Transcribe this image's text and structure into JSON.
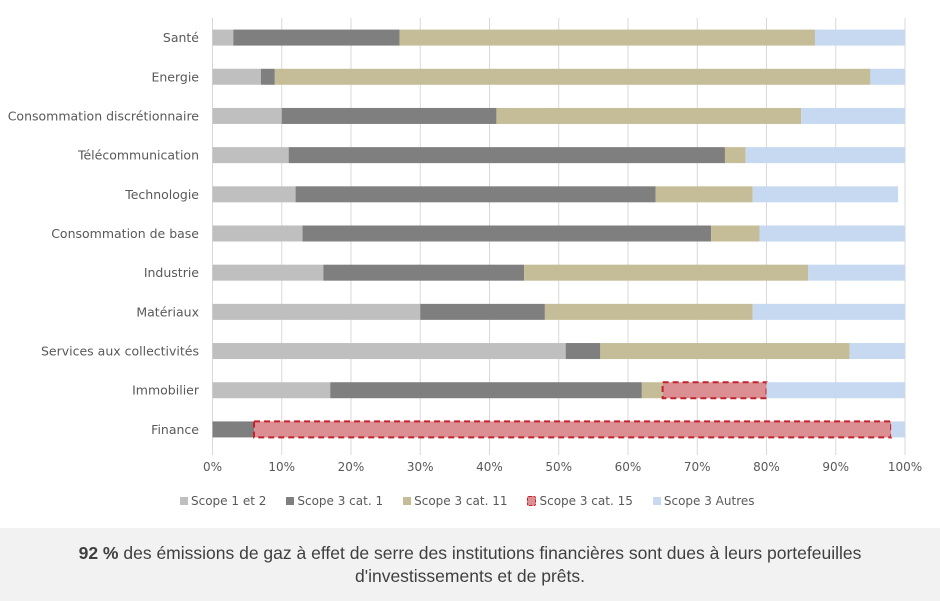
{
  "chart_data": {
    "type": "bar",
    "orientation": "horizontal",
    "stacked": "percent",
    "categories": [
      "Santé",
      "Energie",
      "Consommation discrétionnaire",
      "Télécommunication",
      "Technologie",
      "Consommation de base",
      "Industrie",
      "Matériaux",
      "Services aux collectivités",
      "Immobilier",
      "Finance"
    ],
    "series": [
      {
        "name": "Scope 1 et 2",
        "color": "#bfbfbf",
        "values": [
          3,
          7,
          10,
          11,
          12,
          13,
          16,
          30,
          51,
          17,
          0
        ]
      },
      {
        "name": "Scope 3 cat. 1",
        "color": "#7f7f7f",
        "values": [
          24,
          2,
          31,
          63,
          52,
          59,
          29,
          18,
          5,
          45,
          6
        ]
      },
      {
        "name": "Scope 3 cat. 11",
        "color": "#c4bd97",
        "values": [
          60,
          86,
          44,
          3,
          14,
          7,
          41,
          30,
          36,
          3,
          0
        ]
      },
      {
        "name": "Scope 3 cat. 15",
        "color": "#dc8f92",
        "highlight": true,
        "values": [
          0,
          0,
          0,
          0,
          0,
          0,
          0,
          0,
          0,
          15,
          92
        ]
      },
      {
        "name": "Scope 3 Autres",
        "color": "#c6d9f0",
        "values": [
          13,
          5,
          15,
          23,
          21,
          21,
          14,
          22,
          8,
          20,
          2
        ]
      }
    ],
    "xlim": [
      0,
      100
    ],
    "x_ticks": [
      "0%",
      "10%",
      "20%",
      "30%",
      "40%",
      "50%",
      "60%",
      "70%",
      "80%",
      "90%",
      "100%"
    ],
    "grid": true,
    "legend_position": "bottom",
    "title": "",
    "xlabel": "",
    "ylabel": ""
  },
  "footer": {
    "highlight": "92 %",
    "text": " des émissions de gaz à effet de serre des institutions financières sont dues à leurs portefeuilles d'investissements et de prêts."
  }
}
